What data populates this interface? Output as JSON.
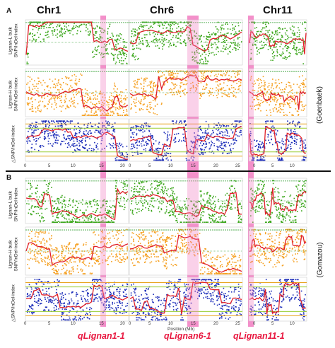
{
  "figure": {
    "chromosomes": [
      "Chr1",
      "Chr6",
      "Chr11"
    ],
    "panel_letters": [
      "A",
      "B"
    ],
    "groups": [
      "(Goenbaek)",
      "(Gomazou)"
    ],
    "row_labels": [
      [
        "Lignan-L bulk",
        "SNP/InDel-index"
      ],
      [
        "Lignan-H bulk",
        "SNP/InDel-index"
      ],
      [
        "△SNP/InDel-index"
      ]
    ],
    "x_axis_label": "Position (Mb)",
    "x_ticks": {
      "chr1": [
        "0",
        "5",
        "10",
        "15",
        "20"
      ],
      "chr6": [
        "0",
        "5",
        "10",
        "15",
        "20",
        "25"
      ],
      "chr11": [
        "0",
        "5",
        "10"
      ]
    },
    "qtl_labels": [
      "qLignan1-1",
      "qLignan6-1",
      "qLignan11-1"
    ],
    "colors": {
      "lbulk_points": "#3aa61a",
      "hbulk_points": "#f5a020",
      "delta_points": "#1a2bb8",
      "trend_line": "#e0202a",
      "qtl_highlight": "#f07ac0",
      "qtl_label": "#e8173f",
      "threshold_99": "#e8a520",
      "threshold_95": "#9acd32"
    }
  }
}
